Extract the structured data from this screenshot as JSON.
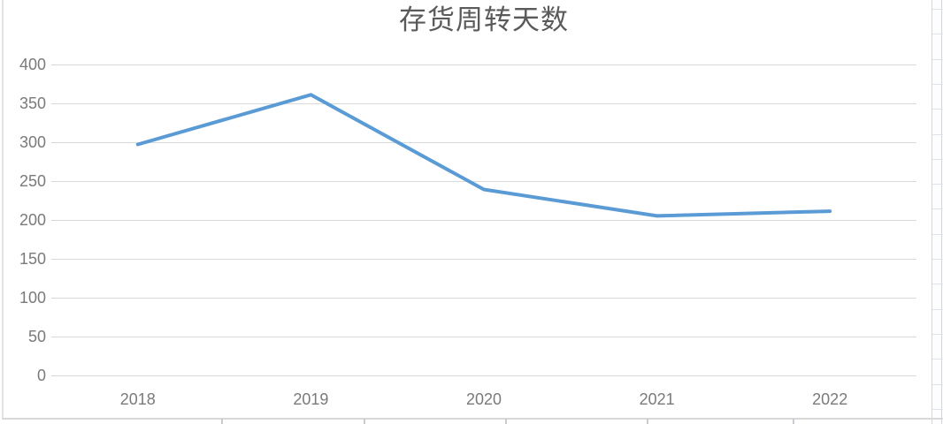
{
  "chart_data": {
    "type": "line",
    "title": "存货周转天数",
    "categories": [
      "2018",
      "2019",
      "2020",
      "2021",
      "2022"
    ],
    "series": [
      {
        "name": "存货周转天数",
        "values": [
          297,
          361,
          239,
          205,
          211
        ]
      }
    ],
    "xlabel": "",
    "ylabel": "",
    "ylim": [
      0,
      400
    ],
    "yticks": [
      0,
      50,
      100,
      150,
      200,
      250,
      300,
      350,
      400
    ],
    "grid": "horizontal",
    "legend_position": "none",
    "line_color": "#5B9BD5"
  },
  "ui_colors": {
    "gridline": "#d9d9d9",
    "tick_label": "#7a7a7a",
    "title_text": "#5a5a5a",
    "chart_border": "#e2e2e2",
    "sheet_line": "#d3d7dd"
  }
}
